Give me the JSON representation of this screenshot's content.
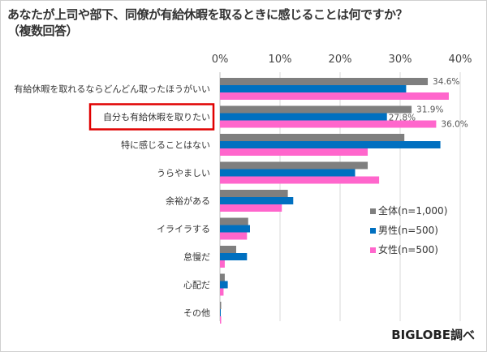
{
  "chart_data": {
    "type": "bar",
    "orientation": "horizontal",
    "title": "あなたが上司や部下、同僚が有給休暇を取るときに感じることは何ですか？",
    "subtitle": "（複数回答）",
    "source": "BIGLOBE調べ",
    "categories": [
      "有給休暇を取れるならどんどん取ったほうがいい",
      "自分も有給休暇を取りたい",
      "特に感じることはない",
      "うらやましい",
      "余裕がある",
      "イライラする",
      "怠慢だ",
      "心配だ",
      "その他"
    ],
    "highlighted_category": "自分も有給休暇を取りたい",
    "xlim": [
      0,
      40
    ],
    "xticks": [
      "0%",
      "10%",
      "20%",
      "30%",
      "40%"
    ],
    "grid": true,
    "legend_position": "right",
    "series": [
      {
        "name": "全体(n=1,000)",
        "color": "#7f7f7f",
        "values": [
          34.6,
          31.9,
          30.7,
          24.6,
          11.3,
          4.7,
          2.7,
          0.8,
          0.2
        ]
      },
      {
        "name": "男性(n=500)",
        "color": "#0070c0",
        "values": [
          31.0,
          27.8,
          36.7,
          22.5,
          12.2,
          5.0,
          4.5,
          1.3,
          0.1
        ]
      },
      {
        "name": "女性(n=500)",
        "color": "#ff66cc",
        "values": [
          38.1,
          36.0,
          24.6,
          26.5,
          10.3,
          4.5,
          0.8,
          0.6,
          0.2
        ]
      }
    ],
    "data_labels": [
      {
        "category": 0,
        "series": 0,
        "text": "34.6%"
      },
      {
        "category": 1,
        "series": 0,
        "text": "31.9%"
      },
      {
        "category": 1,
        "series": 1,
        "text": "27.8%"
      },
      {
        "category": 1,
        "series": 2,
        "text": "36.0%"
      }
    ]
  }
}
